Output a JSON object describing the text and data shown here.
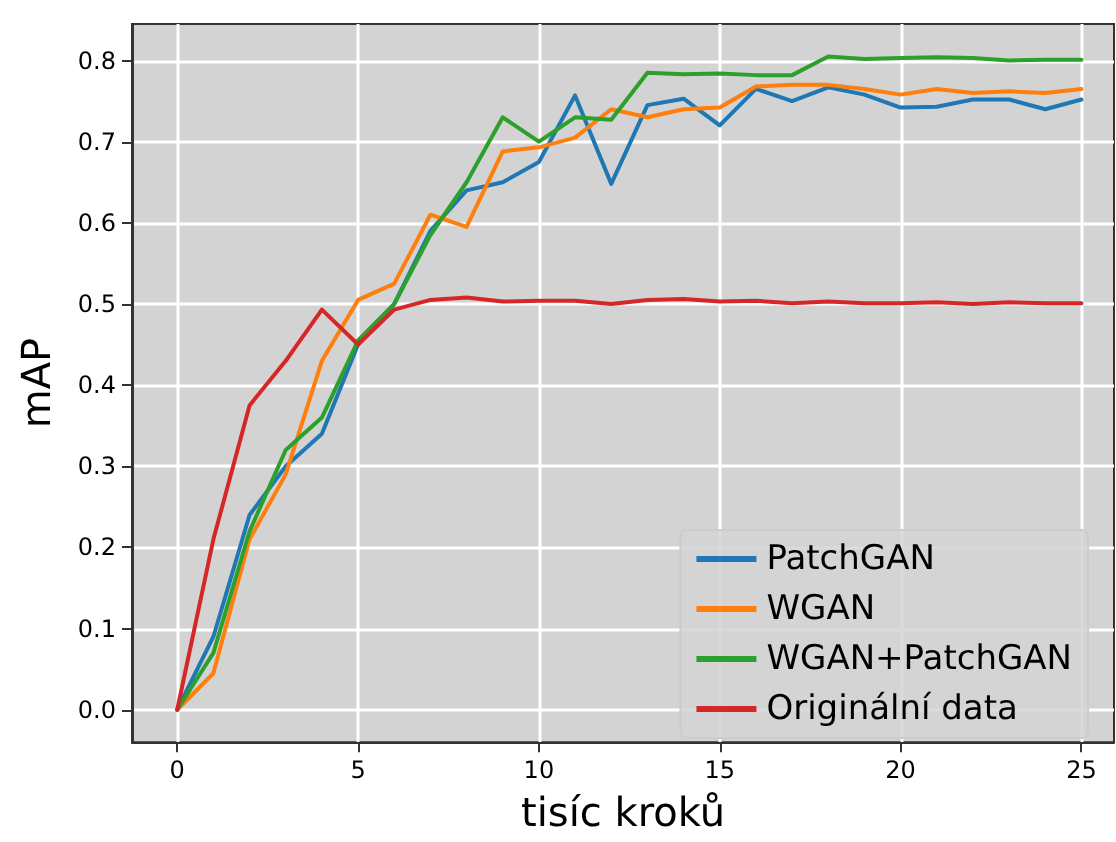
{
  "chart_data": {
    "type": "line",
    "xlabel": "tisíc kroků",
    "ylabel": "mAP",
    "x": [
      0,
      1,
      2,
      3,
      4,
      5,
      6,
      7,
      8,
      9,
      10,
      11,
      12,
      13,
      14,
      15,
      16,
      17,
      18,
      19,
      20,
      21,
      22,
      23,
      24,
      25
    ],
    "series": [
      {
        "name": "PatchGAN",
        "color": "#1f77b4",
        "values": [
          0,
          0.09,
          0.24,
          0.3,
          0.34,
          0.45,
          0.5,
          0.59,
          0.64,
          0.65,
          0.675,
          0.757,
          0.648,
          0.745,
          0.753,
          0.72,
          0.765,
          0.75,
          0.767,
          0.758,
          0.742,
          0.743,
          0.752,
          0.752,
          0.74,
          0.752
        ]
      },
      {
        "name": "WGAN",
        "color": "#ff7f0e",
        "values": [
          0,
          0.045,
          0.21,
          0.29,
          0.43,
          0.505,
          0.525,
          0.61,
          0.595,
          0.688,
          0.693,
          0.705,
          0.74,
          0.73,
          0.74,
          0.742,
          0.768,
          0.77,
          0.77,
          0.765,
          0.758,
          0.765,
          0.76,
          0.762,
          0.76,
          0.765
        ]
      },
      {
        "name": "WGAN+PatchGAN",
        "color": "#2ca02c",
        "values": [
          0,
          0.07,
          0.22,
          0.32,
          0.36,
          0.455,
          0.5,
          0.585,
          0.65,
          0.73,
          0.7,
          0.73,
          0.727,
          0.785,
          0.783,
          0.784,
          0.782,
          0.782,
          0.805,
          0.802,
          0.803,
          0.804,
          0.803,
          0.8,
          0.801,
          0.801
        ]
      },
      {
        "name": "Originální data",
        "color": "#d62728",
        "values": [
          0,
          0.21,
          0.375,
          0.43,
          0.493,
          0.45,
          0.493,
          0.505,
          0.508,
          0.503,
          0.504,
          0.504,
          0.5,
          0.505,
          0.506,
          0.503,
          0.504,
          0.501,
          0.503,
          0.501,
          0.501,
          0.502,
          0.5,
          0.502,
          0.501,
          0.501
        ]
      }
    ],
    "xlim": [
      -1.25,
      25.9
    ],
    "xticks": [
      0,
      5,
      10,
      15,
      20,
      25
    ],
    "ylim": [
      -0.04,
      0.845
    ],
    "yticks": [
      {
        "value": 0,
        "label": "0.0"
      },
      0.1,
      0.2,
      0.3,
      0.4,
      0.5,
      0.6,
      0.7,
      0.8
    ],
    "grid": true,
    "legend": "bottom right",
    "marker": "none",
    "line_style": "solid"
  }
}
